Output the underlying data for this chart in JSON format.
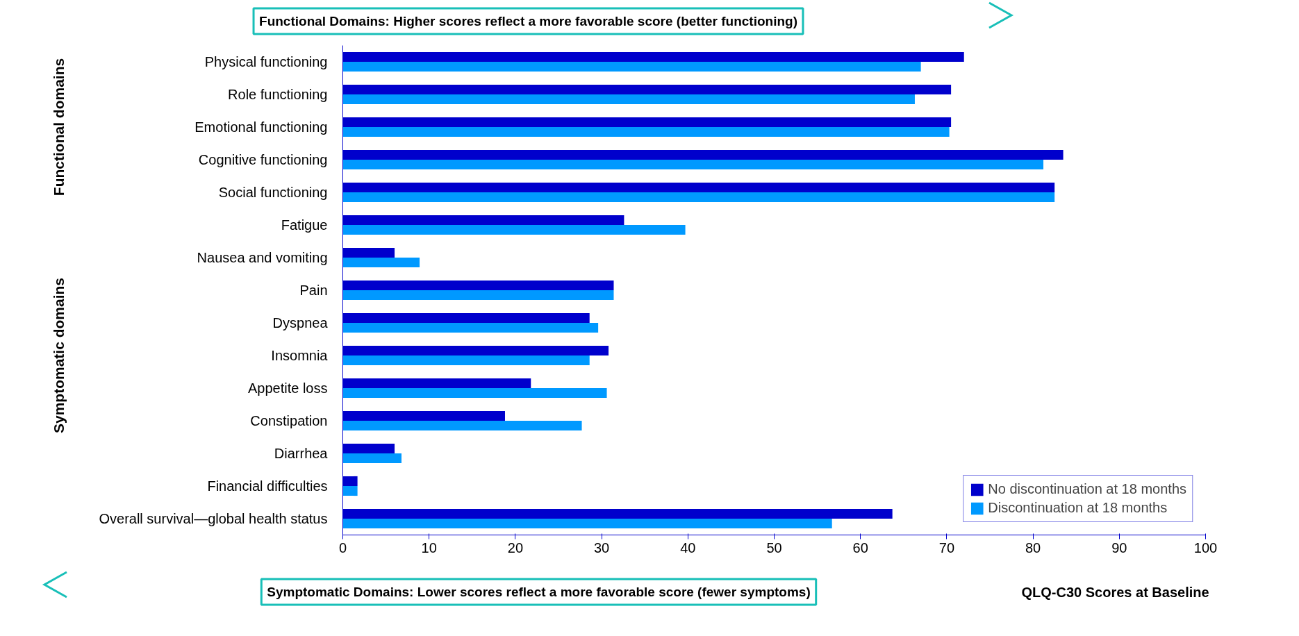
{
  "chart_data": {
    "type": "bar",
    "orientation": "horizontal",
    "title": "Functional Domains: Higher scores reflect a more favorable score (better functioning)",
    "xlabel": "QLQ-C30 Scores at Baseline",
    "annotations": [
      "Symptomatic Domains: Lower scores reflect a more favorable score (fewer symptoms)",
      "Functional domains",
      "Symptomatic domains"
    ],
    "categories": [
      "Physical functioning",
      "Role functioning",
      "Emotional functioning",
      "Cognitive functioning",
      "Social functioning",
      "Fatigue",
      "Nausea and vomiting",
      "Pain",
      "Dyspnea",
      "Insomnia",
      "Appetite loss",
      "Constipation",
      "Diarrhea",
      "Financial difficulties",
      "Overall survival—global health status"
    ],
    "series": [
      {
        "name": "No discontinuation at 18 months",
        "color": "#0000cc",
        "values": [
          72,
          70.5,
          70.5,
          83.5,
          82.5,
          32.6,
          6,
          31.4,
          28.6,
          30.8,
          21.8,
          18.8,
          6,
          1.7,
          63.7
        ]
      },
      {
        "name": "Discontinuation at 18 months",
        "color": "#0099ff",
        "values": [
          67,
          66.3,
          70.3,
          81.2,
          82.5,
          39.7,
          8.9,
          31.4,
          29.6,
          28.6,
          30.6,
          27.7,
          6.8,
          1.7,
          56.7
        ]
      }
    ],
    "xlim": [
      0,
      100
    ],
    "xticks": [
      0,
      10,
      20,
      30,
      40,
      50,
      60,
      70,
      80,
      90,
      100
    ],
    "grid": false,
    "legend": "bottom right"
  }
}
